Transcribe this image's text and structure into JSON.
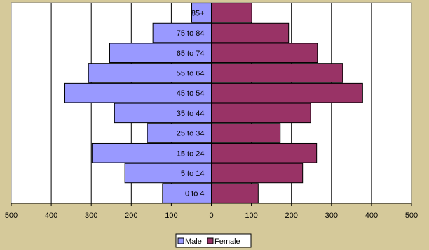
{
  "chart_data": {
    "type": "bar",
    "orientation": "horizontal",
    "subtype": "population-pyramid",
    "categories": [
      "0 to 4",
      "5 to 14",
      "15 to 24",
      "25 to 34",
      "35 to 44",
      "45 to 54",
      "55 to 64",
      "65 to 74",
      "75 to 84",
      "85+"
    ],
    "series": [
      {
        "name": "Male",
        "values": [
          122,
          216,
          298,
          160,
          242,
          366,
          307,
          254,
          146,
          49
        ],
        "color": "#9999ff",
        "direction": "left"
      },
      {
        "name": "Female",
        "values": [
          117,
          228,
          263,
          172,
          248,
          378,
          328,
          265,
          193,
          101
        ],
        "color": "#993366",
        "direction": "right"
      }
    ],
    "xlim": [
      -500,
      500
    ],
    "x_ticks": [
      "500",
      "400",
      "300",
      "200",
      "100",
      "0",
      "100",
      "200",
      "300",
      "400",
      "500"
    ],
    "grid": "vertical",
    "legend_placement": "bottom-center",
    "plot_background": "#ffffff",
    "page_background": "#d5c99a"
  }
}
